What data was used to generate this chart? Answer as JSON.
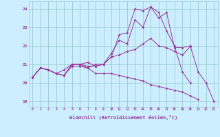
{
  "background_color": "#cceeff",
  "grid_color": "#99cccc",
  "line_color": "#993399",
  "marker_color": "#993399",
  "xlabel": "Windchill (Refroidissement éolien,°C)",
  "xlabel_color": "#993399",
  "ylabel_ticks": [
    19,
    20,
    21,
    22,
    23,
    24
  ],
  "xlim": [
    -0.5,
    23.5
  ],
  "ylim": [
    18.7,
    24.4
  ],
  "xticks": [
    0,
    1,
    2,
    3,
    4,
    5,
    6,
    7,
    8,
    9,
    10,
    11,
    12,
    13,
    14,
    15,
    16,
    17,
    18,
    19,
    20,
    21,
    22,
    23
  ],
  "figsize": [
    3.2,
    2.0
  ],
  "dpi": 100,
  "series": [
    [
      20.3,
      20.8,
      20.7,
      20.5,
      20.7,
      21.0,
      21.0,
      21.1,
      20.9,
      21.0,
      21.4,
      22.6,
      22.7,
      24.0,
      23.9,
      24.1,
      23.8,
      22.8,
      22.0,
      20.6,
      20.0,
      null,
      null,
      null
    ],
    [
      20.3,
      20.8,
      20.7,
      20.5,
      20.4,
      21.0,
      21.0,
      20.9,
      20.9,
      21.0,
      21.4,
      21.5,
      21.7,
      21.8,
      22.1,
      22.4,
      22.0,
      21.9,
      21.7,
      21.5,
      21.95,
      null,
      null,
      null
    ],
    [
      20.3,
      20.8,
      20.7,
      20.5,
      20.4,
      20.9,
      20.9,
      20.8,
      20.5,
      20.5,
      20.5,
      20.4,
      20.3,
      20.2,
      20.1,
      19.9,
      19.8,
      19.7,
      19.6,
      19.5,
      19.3,
      19.1,
      null,
      null
    ],
    [
      20.3,
      20.8,
      20.7,
      20.5,
      20.4,
      21.0,
      21.0,
      20.8,
      21.0,
      21.0,
      21.6,
      22.3,
      22.1,
      23.4,
      23.0,
      24.1,
      23.5,
      23.8,
      21.9,
      21.9,
      22.0,
      20.6,
      20.0,
      19.0
    ]
  ]
}
